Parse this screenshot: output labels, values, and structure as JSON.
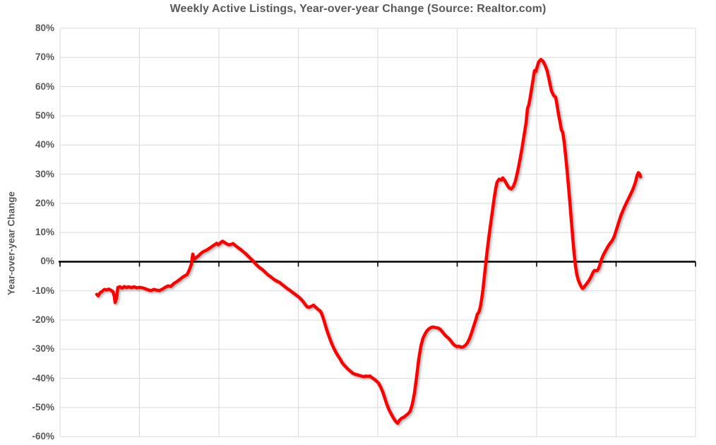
{
  "title": "Weekly Active Listings, Year-over-year Change (Source: Realtor.com)",
  "y_axis": {
    "label": "Year-over-year Change",
    "tick_labels": [
      "80%",
      "70%",
      "60%",
      "50%",
      "40%",
      "30%",
      "20%",
      "10%",
      "0%",
      "-10%",
      "-20%",
      "-30%",
      "-40%",
      "-50%",
      "-60%"
    ]
  },
  "colors": {
    "title_text": "#595959",
    "axis_text": "#595959",
    "gridline": "#D9D9D9",
    "zero_line": "#000000",
    "series_line": "#FF0000",
    "background": "#FFFFFF"
  },
  "chart_data": {
    "type": "line",
    "title": "Weekly Active Listings, Year-over-year Change (Source: Realtor.com)",
    "xlabel": "",
    "ylabel": "Year-over-year Change",
    "ylim": [
      -60,
      80
    ],
    "y_tick_step": 10,
    "grid": true,
    "legend": "none",
    "x_axis_labels_visible": false,
    "x_gridline_count": 9,
    "zero_line": true,
    "x_unit": "horizontal plot position (weekly time axis; x tick labels not visible in screenshot)",
    "x_domain": [
      85,
      985
    ],
    "series": [
      {
        "name": "Weekly active listings year-over-year change",
        "color": "#FF0000",
        "points": [
          [
            137,
            -11.2
          ],
          [
            139,
            -11.7
          ],
          [
            142,
            -10.6
          ],
          [
            145,
            -10.1
          ],
          [
            148,
            -9.5
          ],
          [
            151,
            -9.7
          ],
          [
            154,
            -9.4
          ],
          [
            157,
            -9.8
          ],
          [
            160,
            -10.3
          ],
          [
            162,
            -12
          ],
          [
            163,
            -14
          ],
          [
            165,
            -12.5
          ],
          [
            167,
            -8.8
          ],
          [
            170,
            -8.6
          ],
          [
            173,
            -9.1
          ],
          [
            176,
            -8.5
          ],
          [
            179,
            -8.9
          ],
          [
            182,
            -8.6
          ],
          [
            186,
            -8.9
          ],
          [
            190,
            -8.6
          ],
          [
            194,
            -9
          ],
          [
            198,
            -8.8
          ],
          [
            202,
            -9
          ],
          [
            206,
            -9.3
          ],
          [
            210,
            -9.7
          ],
          [
            214,
            -9.9
          ],
          [
            218,
            -9.5
          ],
          [
            222,
            -9.8
          ],
          [
            226,
            -9.9
          ],
          [
            230,
            -9.4
          ],
          [
            234,
            -8.8
          ],
          [
            238,
            -8.3
          ],
          [
            242,
            -8.5
          ],
          [
            246,
            -7.5
          ],
          [
            250,
            -6.9
          ],
          [
            254,
            -6.2
          ],
          [
            258,
            -5.4
          ],
          [
            262,
            -4.8
          ],
          [
            265,
            -4.4
          ],
          [
            268,
            -2.9
          ],
          [
            271,
            -0.9
          ],
          [
            273,
            2.6
          ],
          [
            275,
            0.9
          ],
          [
            278,
            1.4
          ],
          [
            281,
            2
          ],
          [
            284,
            2.7
          ],
          [
            287,
            3.3
          ],
          [
            290,
            3.7
          ],
          [
            293,
            4
          ],
          [
            296,
            4.5
          ],
          [
            299,
            5
          ],
          [
            302,
            5.5
          ],
          [
            305,
            6
          ],
          [
            307,
            6.3
          ],
          [
            309,
            5.8
          ],
          [
            312,
            6.4
          ],
          [
            315,
            7
          ],
          [
            318,
            6.6
          ],
          [
            321,
            6.1
          ],
          [
            324,
            5.8
          ],
          [
            327,
            5.9
          ],
          [
            330,
            6.2
          ],
          [
            333,
            5.6
          ],
          [
            336,
            5
          ],
          [
            339,
            4.5
          ],
          [
            342,
            3.9
          ],
          [
            345,
            3.3
          ],
          [
            348,
            2.7
          ],
          [
            351,
            2
          ],
          [
            354,
            1.3
          ],
          [
            357,
            0.6
          ],
          [
            360,
            -0.2
          ],
          [
            363,
            -1
          ],
          [
            366,
            -1.7
          ],
          [
            369,
            -2.3
          ],
          [
            372,
            -2.8
          ],
          [
            375,
            -3.5
          ],
          [
            378,
            -4.2
          ],
          [
            381,
            -4.8
          ],
          [
            384,
            -5.3
          ],
          [
            387,
            -5.9
          ],
          [
            390,
            -6.4
          ],
          [
            393,
            -6.8
          ],
          [
            396,
            -7.1
          ],
          [
            399,
            -7.7
          ],
          [
            402,
            -8.3
          ],
          [
            405,
            -8.9
          ],
          [
            408,
            -9.4
          ],
          [
            411,
            -9.9
          ],
          [
            414,
            -10.5
          ],
          [
            417,
            -11
          ],
          [
            420,
            -11.6
          ],
          [
            423,
            -12.1
          ],
          [
            426,
            -12.8
          ],
          [
            429,
            -13.6
          ],
          [
            432,
            -14.6
          ],
          [
            435,
            -15.5
          ],
          [
            438,
            -15.6
          ],
          [
            441,
            -15.3
          ],
          [
            444,
            -14.9
          ],
          [
            447,
            -15.6
          ],
          [
            450,
            -16.3
          ],
          [
            453,
            -16.8
          ],
          [
            455,
            -17.5
          ],
          [
            458,
            -19.5
          ],
          [
            461,
            -22
          ],
          [
            464,
            -24.3
          ],
          [
            467,
            -26.3
          ],
          [
            470,
            -28.2
          ],
          [
            473,
            -29.8
          ],
          [
            476,
            -31.2
          ],
          [
            479,
            -32.4
          ],
          [
            482,
            -33.5
          ],
          [
            485,
            -34.8
          ],
          [
            488,
            -35.6
          ],
          [
            491,
            -36.4
          ],
          [
            494,
            -37.1
          ],
          [
            497,
            -37.7
          ],
          [
            500,
            -38.3
          ],
          [
            503,
            -38.6
          ],
          [
            506,
            -38.8
          ],
          [
            509,
            -39
          ],
          [
            512,
            -39.2
          ],
          [
            515,
            -39.4
          ],
          [
            518,
            -39.2
          ],
          [
            521,
            -39.3
          ],
          [
            524,
            -39.2
          ],
          [
            527,
            -39.8
          ],
          [
            530,
            -40.3
          ],
          [
            533,
            -40.9
          ],
          [
            536,
            -41.6
          ],
          [
            539,
            -42.9
          ],
          [
            542,
            -44.6
          ],
          [
            545,
            -46.8
          ],
          [
            548,
            -49
          ],
          [
            551,
            -50.8
          ],
          [
            554,
            -52.2
          ],
          [
            557,
            -53.5
          ],
          [
            560,
            -54.6
          ],
          [
            563,
            -55.4
          ],
          [
            566,
            -54.3
          ],
          [
            569,
            -53.6
          ],
          [
            572,
            -53.3
          ],
          [
            575,
            -52.7
          ],
          [
            578,
            -52.1
          ],
          [
            581,
            -51.2
          ],
          [
            584,
            -48.8
          ],
          [
            587,
            -45
          ],
          [
            590,
            -39.5
          ],
          [
            593,
            -33.5
          ],
          [
            596,
            -29
          ],
          [
            599,
            -26.3
          ],
          [
            602,
            -24.7
          ],
          [
            605,
            -23.6
          ],
          [
            608,
            -22.9
          ],
          [
            611,
            -22.5
          ],
          [
            614,
            -22.4
          ],
          [
            617,
            -22.6
          ],
          [
            620,
            -22.7
          ],
          [
            623,
            -23.1
          ],
          [
            626,
            -23.9
          ],
          [
            629,
            -24.8
          ],
          [
            632,
            -25.6
          ],
          [
            635,
            -26.2
          ],
          [
            638,
            -27
          ],
          [
            641,
            -28
          ],
          [
            644,
            -28.7
          ],
          [
            647,
            -29.1
          ],
          [
            650,
            -29
          ],
          [
            653,
            -29.3
          ],
          [
            656,
            -29.2
          ],
          [
            659,
            -28.7
          ],
          [
            662,
            -27.8
          ],
          [
            665,
            -26.3
          ],
          [
            668,
            -24.3
          ],
          [
            671,
            -22
          ],
          [
            674,
            -19.8
          ],
          [
            676,
            -18
          ],
          [
            678,
            -17.4
          ],
          [
            680,
            -15.8
          ],
          [
            682,
            -13
          ],
          [
            684,
            -9.5
          ],
          [
            686,
            -5
          ],
          [
            688,
            -0.5
          ],
          [
            690,
            3.8
          ],
          [
            692,
            7.8
          ],
          [
            694,
            11.5
          ],
          [
            696,
            15
          ],
          [
            698,
            18.5
          ],
          [
            700,
            22
          ],
          [
            702,
            25
          ],
          [
            704,
            27.3
          ],
          [
            707,
            28.3
          ],
          [
            710,
            28
          ],
          [
            712,
            28.7
          ],
          [
            715,
            27.7
          ],
          [
            718,
            26.4
          ],
          [
            721,
            25.3
          ],
          [
            724,
            24.9
          ],
          [
            727,
            25.8
          ],
          [
            730,
            27.7
          ],
          [
            733,
            30.8
          ],
          [
            736,
            34.5
          ],
          [
            739,
            38.5
          ],
          [
            742,
            43
          ],
          [
            745,
            47.5
          ],
          [
            747,
            52.5
          ],
          [
            749,
            53.8
          ],
          [
            751,
            56.5
          ],
          [
            753,
            59.5
          ],
          [
            755,
            62.5
          ],
          [
            757,
            65.5
          ],
          [
            759,
            65.2
          ],
          [
            761,
            67
          ],
          [
            763,
            68.5
          ],
          [
            766,
            69.3
          ],
          [
            769,
            68.7
          ],
          [
            772,
            67.3
          ],
          [
            775,
            65.3
          ],
          [
            778,
            62
          ],
          [
            781,
            58.5
          ],
          [
            784,
            57
          ],
          [
            787,
            56.3
          ],
          [
            789,
            53.5
          ],
          [
            791,
            50.5
          ],
          [
            793,
            48
          ],
          [
            795,
            45.2
          ],
          [
            797,
            44.3
          ],
          [
            799,
            41
          ],
          [
            801,
            36.5
          ],
          [
            803,
            31.5
          ],
          [
            805,
            26
          ],
          [
            807,
            20.5
          ],
          [
            809,
            14.5
          ],
          [
            811,
            8.5
          ],
          [
            813,
            3
          ],
          [
            815,
            -1.5
          ],
          [
            817,
            -4.5
          ],
          [
            819,
            -6.3
          ],
          [
            821,
            -7.5
          ],
          [
            823,
            -8.5
          ],
          [
            825,
            -9.2
          ],
          [
            827,
            -8.8
          ],
          [
            829,
            -8.1
          ],
          [
            831,
            -7.5
          ],
          [
            834,
            -6.5
          ],
          [
            837,
            -5.2
          ],
          [
            840,
            -3.6
          ],
          [
            842,
            -3
          ],
          [
            844,
            -3.1
          ],
          [
            846,
            -3
          ],
          [
            848,
            -2.2
          ],
          [
            850,
            -0.7
          ],
          [
            852,
            0.9
          ],
          [
            855,
            2.6
          ],
          [
            858,
            3.9
          ],
          [
            861,
            5.2
          ],
          [
            864,
            6.3
          ],
          [
            867,
            7.2
          ],
          [
            870,
            8.7
          ],
          [
            873,
            11
          ],
          [
            876,
            13.3
          ],
          [
            879,
            15.6
          ],
          [
            882,
            17.4
          ],
          [
            885,
            19.1
          ],
          [
            888,
            20.6
          ],
          [
            891,
            22.1
          ],
          [
            894,
            23.6
          ],
          [
            896,
            24.6
          ],
          [
            898,
            25.9
          ],
          [
            900,
            27.3
          ],
          [
            902,
            29.3
          ],
          [
            904,
            30.5
          ],
          [
            906,
            30
          ],
          [
            907,
            29.1
          ]
        ]
      }
    ]
  }
}
